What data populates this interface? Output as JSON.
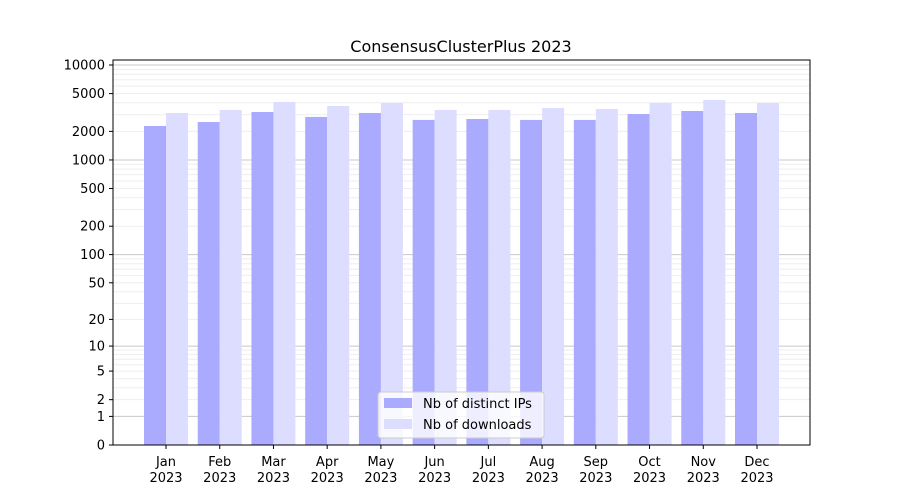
{
  "chart_data": {
    "type": "bar",
    "title": "ConsensusClusterPlus 2023",
    "xlabel": "",
    "ylabel": "",
    "yscale": "symlog",
    "ylim": [
      0,
      12000
    ],
    "yticks": [
      0,
      1,
      2,
      5,
      10,
      20,
      50,
      100,
      200,
      500,
      1000,
      2000,
      5000,
      10000
    ],
    "grid": true,
    "legend_position": "bottom-center",
    "categories": [
      "Jan\n2023",
      "Feb\n2023",
      "Mar\n2023",
      "Apr\n2023",
      "May\n2023",
      "Jun\n2023",
      "Jul\n2023",
      "Aug\n2023",
      "Sep\n2023",
      "Oct\n2023",
      "Nov\n2023",
      "Dec\n2023"
    ],
    "series": [
      {
        "name": "Nb of distinct IPs",
        "color": "#aaaaff",
        "values": [
          2280,
          2510,
          3200,
          2840,
          3125,
          2640,
          2700,
          2640,
          2640,
          3050,
          3280,
          3125
        ]
      },
      {
        "name": "Nb of downloads",
        "color": "#ddddff",
        "values": [
          3125,
          3360,
          4080,
          3700,
          3980,
          3360,
          3360,
          3530,
          3440,
          3980,
          4280,
          3980
        ]
      }
    ]
  }
}
